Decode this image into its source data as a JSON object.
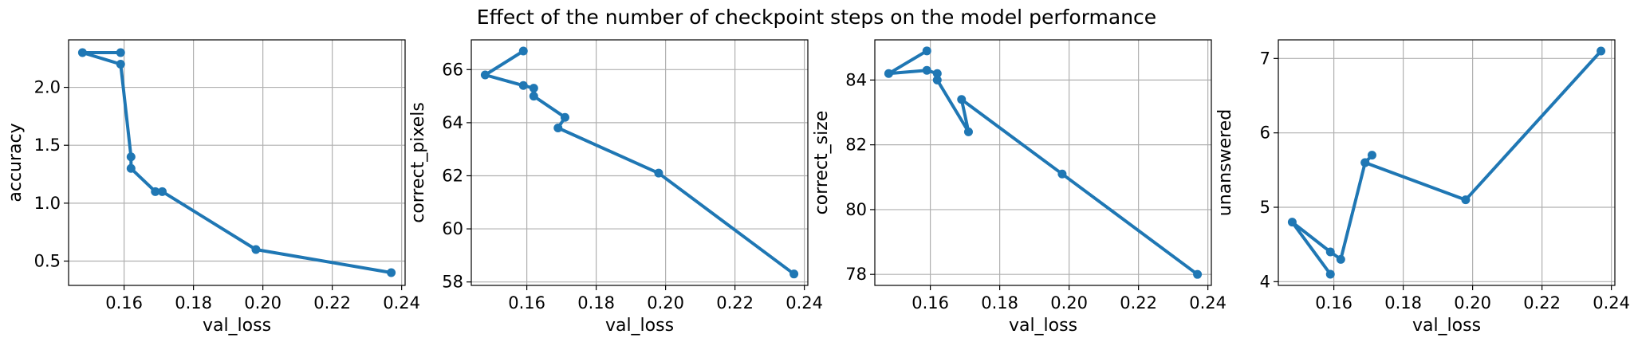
{
  "figure_title": "Effect of the number of checkpoint steps on the model performance",
  "style": {
    "line_color": "#1f77b4",
    "grid_color": "#b0b0b0"
  },
  "chart_data": [
    {
      "type": "line",
      "xlabel": "val_loss",
      "ylabel": "accuracy",
      "xlim": [
        0.144,
        0.241
      ],
      "ylim": [
        0.29,
        2.41
      ],
      "xticks": [
        0.16,
        0.18,
        0.2,
        0.22,
        0.24
      ],
      "xtick_labels": [
        "0.16",
        "0.18",
        "0.20",
        "0.22",
        "0.24"
      ],
      "yticks": [
        0.5,
        1.0,
        1.5,
        2.0
      ],
      "ytick_labels": [
        "0.5",
        "1.0",
        "1.5",
        "2.0"
      ],
      "grid": true,
      "series": [
        {
          "x": [
            0.159,
            0.148,
            0.159,
            0.162,
            0.162,
            0.169,
            0.171,
            0.198,
            0.237
          ],
          "y": [
            2.3,
            2.3,
            2.2,
            1.4,
            1.3,
            1.1,
            1.1,
            0.6,
            0.4
          ]
        }
      ]
    },
    {
      "type": "line",
      "xlabel": "val_loss",
      "ylabel": "correct_pixels",
      "xlim": [
        0.144,
        0.241
      ],
      "ylim": [
        57.87,
        67.12
      ],
      "xticks": [
        0.16,
        0.18,
        0.2,
        0.22,
        0.24
      ],
      "xtick_labels": [
        "0.16",
        "0.18",
        "0.20",
        "0.22",
        "0.24"
      ],
      "yticks": [
        58,
        60,
        62,
        64,
        66
      ],
      "ytick_labels": [
        "58",
        "60",
        "62",
        "64",
        "66"
      ],
      "grid": true,
      "series": [
        {
          "x": [
            0.159,
            0.148,
            0.159,
            0.162,
            0.162,
            0.171,
            0.169,
            0.198,
            0.237
          ],
          "y": [
            66.7,
            65.8,
            65.4,
            65.3,
            65.0,
            64.2,
            63.8,
            62.1,
            58.3
          ]
        }
      ]
    },
    {
      "type": "line",
      "xlabel": "val_loss",
      "ylabel": "correct_size",
      "xlim": [
        0.144,
        0.241
      ],
      "ylim": [
        77.66,
        85.24
      ],
      "xticks": [
        0.16,
        0.18,
        0.2,
        0.22,
        0.24
      ],
      "xtick_labels": [
        "0.16",
        "0.18",
        "0.20",
        "0.22",
        "0.24"
      ],
      "yticks": [
        78,
        80,
        82,
        84
      ],
      "ytick_labels": [
        "78",
        "80",
        "82",
        "84"
      ],
      "grid": true,
      "series": [
        {
          "x": [
            0.159,
            0.148,
            0.159,
            0.162,
            0.162,
            0.171,
            0.169,
            0.198,
            0.237
          ],
          "y": [
            84.9,
            84.2,
            84.3,
            84.2,
            84.0,
            82.4,
            83.4,
            81.1,
            78.0
          ]
        }
      ]
    },
    {
      "type": "line",
      "xlabel": "val_loss",
      "ylabel": "unanswered",
      "xlim": [
        0.144,
        0.241
      ],
      "ylim": [
        3.95,
        7.25
      ],
      "xticks": [
        0.16,
        0.18,
        0.2,
        0.22,
        0.24
      ],
      "xtick_labels": [
        "0.16",
        "0.18",
        "0.20",
        "0.22",
        "0.24"
      ],
      "yticks": [
        4,
        5,
        6,
        7
      ],
      "ytick_labels": [
        "4",
        "5",
        "6",
        "7"
      ],
      "grid": true,
      "series": [
        {
          "x": [
            0.159,
            0.148,
            0.159,
            0.162,
            0.169,
            0.171,
            0.169,
            0.198,
            0.237
          ],
          "y": [
            4.1,
            4.8,
            4.4,
            4.3,
            5.6,
            5.7,
            5.6,
            5.1,
            7.1
          ]
        }
      ]
    }
  ]
}
